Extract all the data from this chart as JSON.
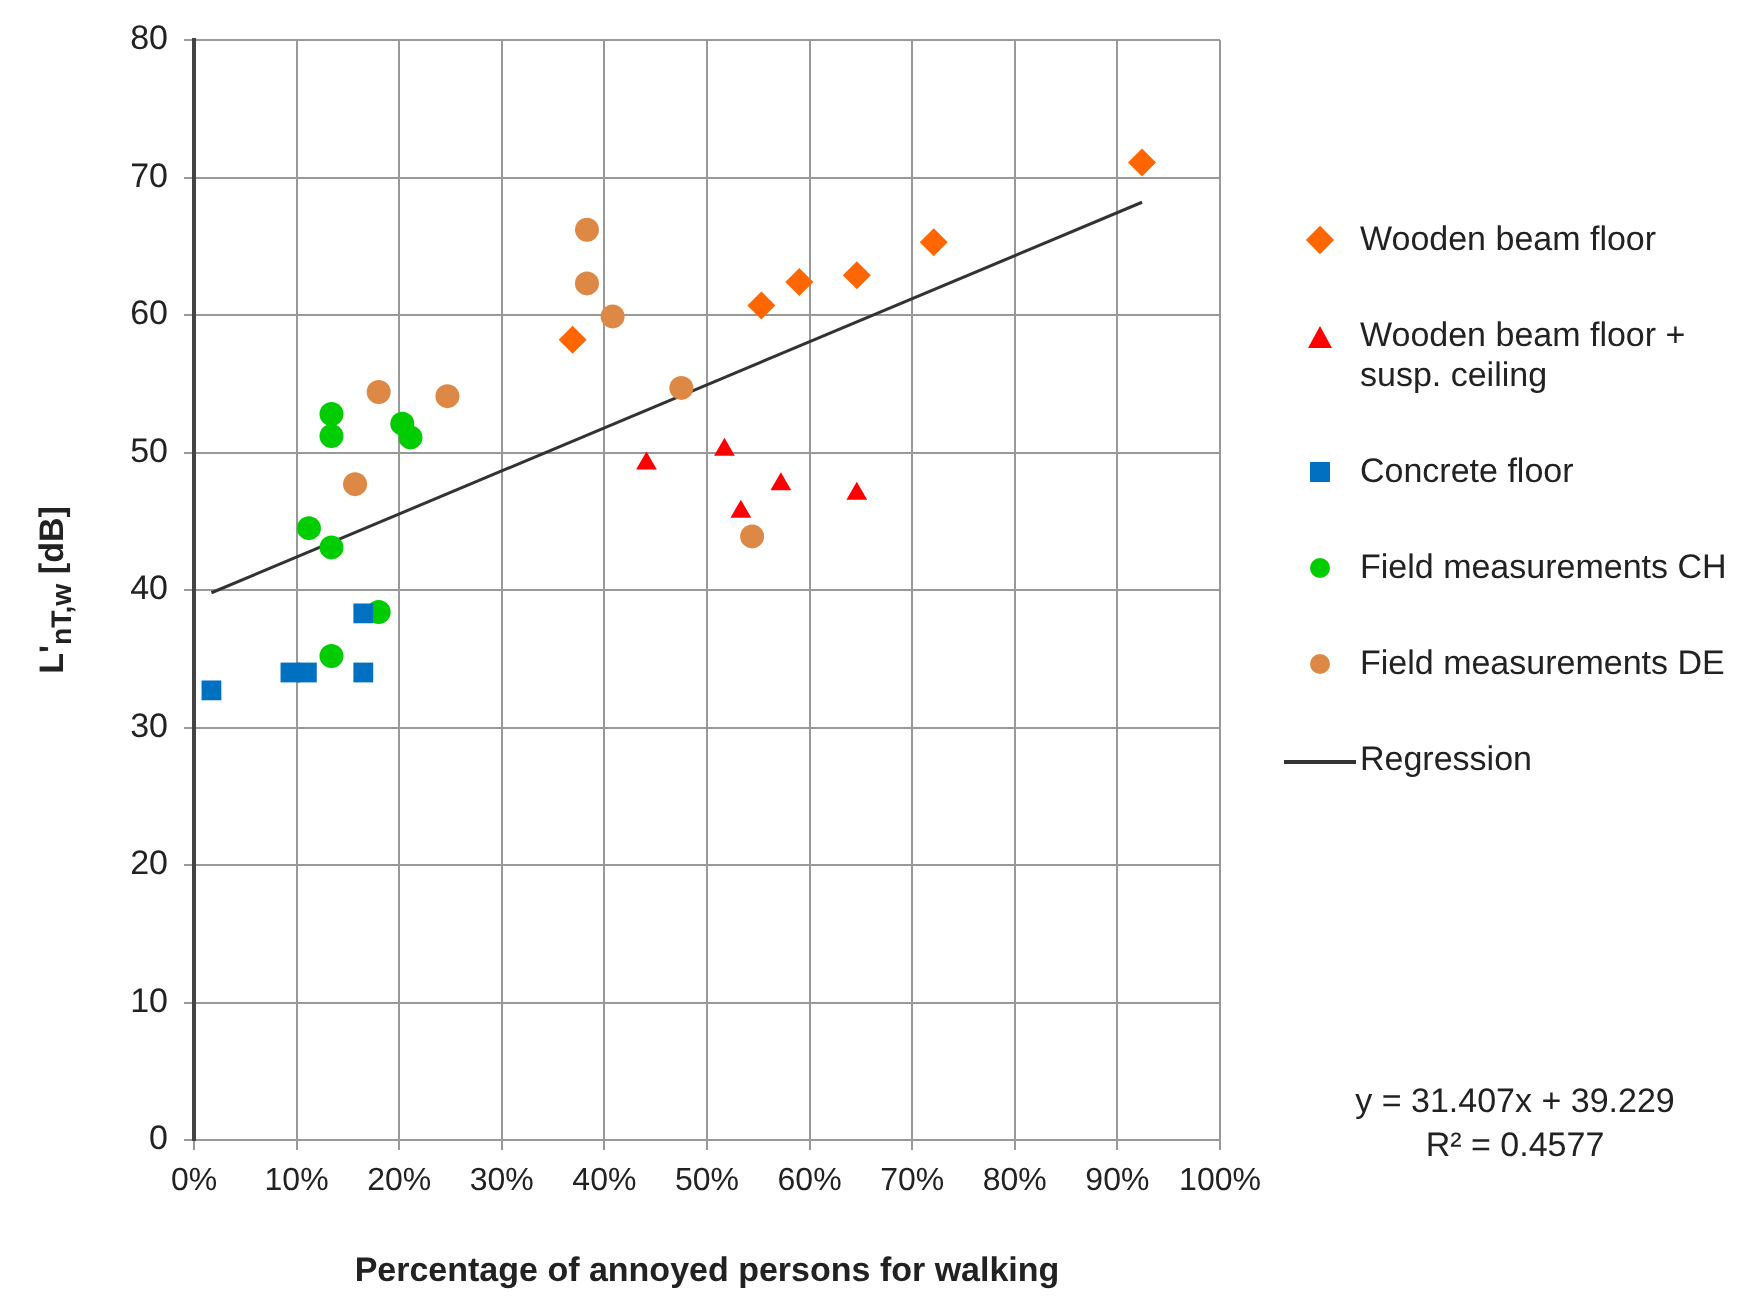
{
  "chart_data": {
    "type": "scatter",
    "xlabel": "Percentage of annoyed persons for walking",
    "ylabel": "L'$_{nT,w}$ [dB]",
    "xlim": [
      0,
      100
    ],
    "xticks": [
      {
        "value": 0,
        "label": "0%"
      },
      {
        "value": 10,
        "label": "10%"
      },
      {
        "value": 20,
        "label": "20%"
      },
      {
        "value": 30,
        "label": "30%"
      },
      {
        "value": 40,
        "label": "40%"
      },
      {
        "value": 50,
        "label": "50%"
      },
      {
        "value": 60,
        "label": "60%"
      },
      {
        "value": 70,
        "label": "70%"
      },
      {
        "value": 80,
        "label": "80%"
      },
      {
        "value": 90,
        "label": "90%"
      },
      {
        "value": 100,
        "label": "100%"
      }
    ],
    "ylim": [
      0,
      80
    ],
    "yticks": [
      0,
      10,
      20,
      30,
      40,
      50,
      60,
      70,
      80
    ],
    "grid": true,
    "legend": "right",
    "series": [
      {
        "name": "Wooden beam floor",
        "color": "#ff6600",
        "marker": "diamond",
        "x": [
          36.9,
          55.3,
          59.0,
          64.6,
          72.1,
          92.4
        ],
        "values": [
          58.2,
          60.7,
          62.4,
          62.9,
          65.3,
          71.1
        ]
      },
      {
        "name": "Wooden beam floor + susp. ceiling",
        "color": "#ff0000",
        "marker": "triangle",
        "x": [
          44.1,
          51.7,
          53.3,
          57.2,
          64.6
        ],
        "values": [
          49.2,
          50.2,
          45.7,
          47.7,
          47.0
        ]
      },
      {
        "name": "Concrete floor",
        "color": "#0070c0",
        "marker": "square",
        "x": [
          1.7,
          9.4,
          11.0,
          16.5,
          16.5
        ],
        "values": [
          32.7,
          34.0,
          34.0,
          34.0,
          38.3
        ]
      },
      {
        "name": "Field measurements CH",
        "color": "#00cc00",
        "marker": "circle",
        "x": [
          13.4,
          13.4,
          20.3,
          21.1,
          11.2,
          13.4,
          18.0,
          13.4
        ],
        "values": [
          52.8,
          51.2,
          52.1,
          51.1,
          44.5,
          43.1,
          38.4,
          35.2
        ]
      },
      {
        "name": "Field measurements DE",
        "color": "#dd8844",
        "marker": "circle",
        "x": [
          38.3,
          38.3,
          40.8,
          18.0,
          24.7,
          15.7,
          47.5,
          54.4
        ],
        "values": [
          66.2,
          62.3,
          59.9,
          54.4,
          54.1,
          47.7,
          54.7,
          43.9
        ]
      },
      {
        "name": "Regression",
        "type": "line",
        "color": "#333333",
        "marker": "none",
        "line_style": "solid",
        "x": [
          1.7,
          92.4
        ],
        "values": [
          39.8,
          68.2
        ]
      }
    ],
    "annotations": [
      "y = 31.407x + 39.229",
      "R² = 0.4577"
    ]
  }
}
